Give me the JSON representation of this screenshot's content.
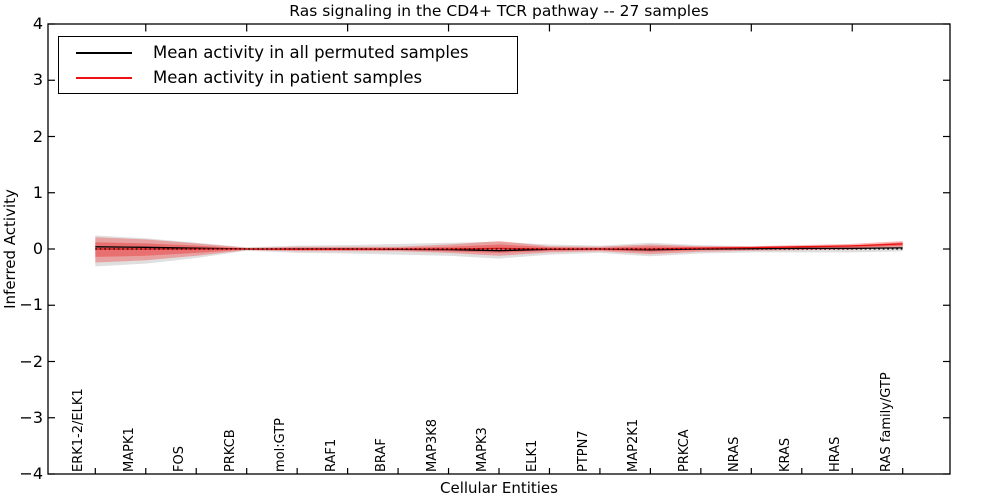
{
  "figure": {
    "title": "Ras signaling in the CD4+ TCR pathway -- 27 samples",
    "xlabel": "Cellular Entities",
    "ylabel": "Inferred Activity"
  },
  "legend": {
    "entries": [
      {
        "label": "Mean activity in all permuted samples",
        "color": "#000000"
      },
      {
        "label": "Mean activity in patient samples",
        "color": "#ee1111"
      }
    ]
  },
  "chart_data": {
    "type": "line",
    "title": "Ras signaling in the CD4+ TCR pathway -- 27 samples",
    "xlabel": "Cellular Entities",
    "ylabel": "Inferred Activity",
    "ylim": [
      -4,
      4
    ],
    "yticks": [
      -4,
      -3,
      -2,
      -1,
      0,
      1,
      2,
      3,
      4
    ],
    "grid": false,
    "legend_position": "upper left",
    "x_tick_label_rotation": 90,
    "categories": [
      "ERK1-2/ELK1",
      "MAPK1",
      "FOS",
      "PRKCB",
      "mol:GTP",
      "RAF1",
      "BRAF",
      "MAP3K8",
      "MAPK3",
      "ELK1",
      "PTPN7",
      "MAP2K1",
      "PRKCA",
      "NRAS",
      "KRAS",
      "HRAS",
      "RAS family/GTP"
    ],
    "series": [
      {
        "name": "Mean activity in all permuted samples",
        "color": "#000000",
        "style": "solid",
        "values": [
          0.04,
          0.03,
          0.015,
          0.0,
          0.0,
          0.0,
          -0.005,
          -0.01,
          -0.03,
          -0.005,
          0.0,
          -0.015,
          0.0,
          0.005,
          0.01,
          0.01,
          0.02
        ]
      },
      {
        "name": "Mean activity in patient samples",
        "color": "#ee1111",
        "style": "solid",
        "values": [
          0.0,
          0.0,
          0.0,
          0.0,
          -0.005,
          -0.005,
          0.0,
          0.0,
          0.01,
          0.0,
          0.0,
          0.0,
          0.015,
          0.025,
          0.04,
          0.055,
          0.09
        ]
      }
    ],
    "reference_line": {
      "value": 0,
      "color": "#000000",
      "style": "dotted"
    },
    "bands": [
      {
        "name": "permuted-sample-range",
        "color": "rgba(110,110,110,0.22)",
        "upper": [
          0.24,
          0.19,
          0.11,
          0.03,
          0.06,
          0.07,
          0.09,
          0.11,
          0.13,
          0.08,
          0.06,
          0.11,
          0.07,
          0.05,
          0.06,
          0.07,
          0.09
        ],
        "lower": [
          -0.31,
          -0.26,
          -0.16,
          -0.03,
          -0.07,
          -0.08,
          -0.1,
          -0.12,
          -0.17,
          -0.1,
          -0.07,
          -0.13,
          -0.08,
          -0.06,
          -0.06,
          -0.06,
          -0.04
        ]
      },
      {
        "name": "patient-sample-outer-band",
        "color": "rgba(255,0,0,0.28)",
        "upper": [
          0.21,
          0.17,
          0.1,
          0.02,
          0.04,
          0.04,
          0.04,
          0.08,
          0.14,
          0.05,
          0.04,
          0.08,
          0.05,
          0.05,
          0.07,
          0.09,
          0.14
        ],
        "lower": [
          -0.24,
          -0.2,
          -0.12,
          -0.02,
          -0.04,
          -0.04,
          -0.04,
          -0.07,
          -0.12,
          -0.06,
          -0.04,
          -0.09,
          -0.05,
          -0.03,
          -0.02,
          -0.01,
          0.03
        ]
      },
      {
        "name": "patient-sample-inner-band",
        "color": "rgba(235,10,10,0.32)",
        "upper": [
          0.12,
          0.1,
          0.06,
          0.01,
          0.02,
          0.02,
          0.02,
          0.04,
          0.08,
          0.03,
          0.02,
          0.05,
          0.03,
          0.03,
          0.05,
          0.06,
          0.12
        ],
        "lower": [
          -0.14,
          -0.12,
          -0.07,
          -0.01,
          -0.02,
          -0.02,
          -0.02,
          -0.04,
          -0.07,
          -0.03,
          -0.02,
          -0.05,
          -0.02,
          -0.01,
          0.0,
          0.02,
          0.06
        ]
      }
    ],
    "top_axis_tick_categories": [
      "MAPK1",
      "PRKCB",
      "RAF1",
      "MAP3K8",
      "ELK1",
      "MAP2K1",
      "NRAS",
      "HRAS"
    ]
  }
}
